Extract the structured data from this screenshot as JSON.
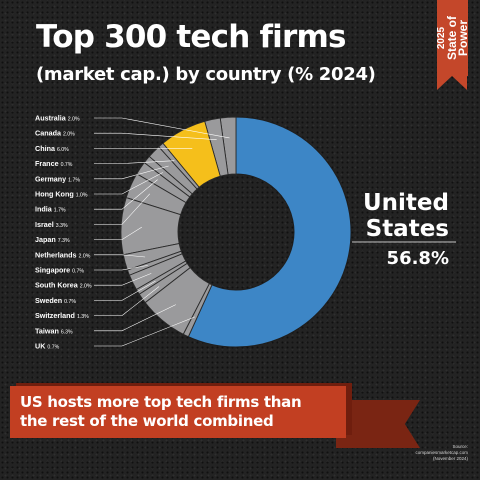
{
  "header": {
    "title_line1": "Top 300 tech firms",
    "title_line2": "(market cap.) by country (% 2024)"
  },
  "badge": {
    "year": "2025",
    "brand_line1": "State of",
    "brand_line2": "Power"
  },
  "colors": {
    "background": "#232323",
    "us": "#3d86c6",
    "china": "#f5bf1b",
    "others": "#9a9a9c",
    "banner": "#c23f22"
  },
  "chart_data": {
    "type": "pie",
    "donut": true,
    "unit": "%",
    "slices": [
      {
        "label": "Australia",
        "value": 2.0,
        "display": "2.0%"
      },
      {
        "label": "Canada",
        "value": 2.0,
        "display": "2.0%"
      },
      {
        "label": "China",
        "value": 6.0,
        "display": "6.0%"
      },
      {
        "label": "France",
        "value": 0.7,
        "display": "0.7%"
      },
      {
        "label": "Germany",
        "value": 1.7,
        "display": "1.7%"
      },
      {
        "label": "Hong Kong",
        "value": 1.0,
        "display": "1.0%"
      },
      {
        "label": "India",
        "value": 1.7,
        "display": "1.7%"
      },
      {
        "label": "Israel",
        "value": 3.3,
        "display": "3.3%"
      },
      {
        "label": "Japan",
        "value": 7.3,
        "display": "7.3%"
      },
      {
        "label": "Netherlands",
        "value": 2.0,
        "display": "2.0%"
      },
      {
        "label": "Singapore",
        "value": 0.7,
        "display": "0.7%"
      },
      {
        "label": "South Korea",
        "value": 2.0,
        "display": "2.0%"
      },
      {
        "label": "Sweden",
        "value": 0.7,
        "display": "0.7%"
      },
      {
        "label": "Switzerland",
        "value": 1.3,
        "display": "1.3%"
      },
      {
        "label": "Taiwan",
        "value": 6.3,
        "display": "6.3%"
      },
      {
        "label": "UK",
        "value": 0.7,
        "display": "0.7%"
      }
    ],
    "highlight": {
      "label_line1": "United",
      "label_line2": "States",
      "value": 56.8,
      "display": "56.8%"
    }
  },
  "banner": {
    "line1": "US hosts more top tech firms than",
    "line2": "the rest of the world combined"
  },
  "source": {
    "line1": "Source:",
    "line2": "companiesmarketcap.com",
    "line3": "(November 2024)"
  }
}
